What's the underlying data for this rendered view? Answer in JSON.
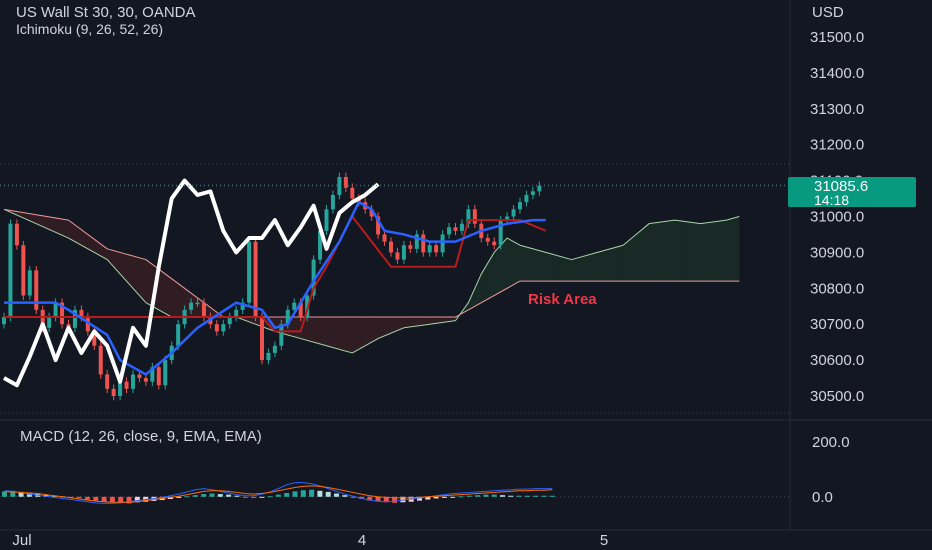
{
  "header": {
    "symbol_line": "US Wall St 30, 30, OANDA",
    "indicator_line": "Ichimoku (9, 26, 52, 26)",
    "currency": "USD"
  },
  "price_badge": {
    "price": "31085.6",
    "countdown": "14:18",
    "color": "#089981"
  },
  "annotation": {
    "label": "Risk Area",
    "color": "#f23645"
  },
  "macd": {
    "label": "MACD (12, 26, close, 9, EMA, EMA)"
  },
  "colors": {
    "background": "#131722",
    "up": "#26a69a",
    "down": "#ef5350",
    "tenkan": "#2962ff",
    "kijun": "#b71c1c",
    "chikou": "#ffffff",
    "span_a": "#a5d6a7",
    "span_b": "#ef9a9a",
    "macd_line": "#2962ff",
    "signal_line": "#ff6d00"
  },
  "chart_data": [
    {
      "type": "line",
      "title": "US Wall St 30, 30, OANDA",
      "y_axis_ticks": [
        "31500.0",
        "31400.0",
        "31300.0",
        "31200.0",
        "31100.0",
        "31000.0",
        "30900.0",
        "30800.0",
        "30700.0",
        "30600.0",
        "30500.0"
      ],
      "x_axis_ticks": [
        "Jul",
        "4",
        "5"
      ],
      "y_range": [
        30450,
        31600
      ],
      "last_price": 31085.6,
      "candles_close": [
        30720,
        30980,
        30920,
        30780,
        30850,
        30740,
        30690,
        30720,
        30760,
        30700,
        30690,
        30740,
        30720,
        30680,
        30640,
        30560,
        30520,
        30500,
        30540,
        30520,
        30560,
        30550,
        30540,
        30580,
        30530,
        30600,
        30640,
        30700,
        30740,
        30760,
        30760,
        30720,
        30700,
        30680,
        30700,
        30720,
        30740,
        30760,
        30930,
        30720,
        30600,
        30620,
        30640,
        30700,
        30740,
        30760,
        30720,
        30780,
        30880,
        30960,
        31020,
        31060,
        31110,
        31080,
        31050,
        31040,
        31020,
        31000,
        30950,
        30930,
        30900,
        30880,
        30920,
        30910,
        30950,
        30900,
        30920,
        30900,
        30950,
        30970,
        30960,
        30980,
        31020,
        30980,
        30940,
        30930,
        30920,
        30990,
        31000,
        31020,
        31040,
        31060,
        31070,
        31085.6
      ],
      "tenkan_points": [
        [
          0,
          30760
        ],
        [
          8,
          30760
        ],
        [
          10,
          30740
        ],
        [
          16,
          30670
        ],
        [
          18,
          30600
        ],
        [
          22,
          30560
        ],
        [
          26,
          30620
        ],
        [
          30,
          30690
        ],
        [
          36,
          30760
        ],
        [
          40,
          30740
        ],
        [
          42,
          30690
        ],
        [
          44,
          30700
        ],
        [
          46,
          30760
        ],
        [
          48,
          30820
        ],
        [
          52,
          30930
        ],
        [
          55,
          31040
        ],
        [
          57,
          31020
        ],
        [
          59,
          30960
        ],
        [
          62,
          30950
        ],
        [
          66,
          30930
        ],
        [
          70,
          30930
        ],
        [
          74,
          30960
        ],
        [
          78,
          30980
        ],
        [
          82,
          30990
        ],
        [
          84,
          30990
        ]
      ],
      "kijun_points": [
        [
          0,
          30720
        ],
        [
          8,
          30720
        ],
        [
          24,
          30720
        ],
        [
          40,
          30720
        ],
        [
          42,
          30680
        ],
        [
          46,
          30680
        ],
        [
          48,
          30800
        ],
        [
          50,
          30860
        ],
        [
          54,
          31000
        ],
        [
          60,
          30860
        ],
        [
          70,
          30860
        ],
        [
          72,
          30990
        ],
        [
          80,
          30990
        ],
        [
          84,
          30960
        ]
      ],
      "span_a_points": [
        [
          0,
          31020
        ],
        [
          10,
          30940
        ],
        [
          16,
          30880
        ],
        [
          22,
          30760
        ],
        [
          26,
          30720
        ],
        [
          30,
          30720
        ],
        [
          36,
          30720
        ],
        [
          42,
          30680
        ],
        [
          46,
          30660
        ],
        [
          50,
          30640
        ],
        [
          54,
          30620
        ],
        [
          58,
          30660
        ],
        [
          62,
          30690
        ],
        [
          66,
          30700
        ],
        [
          70,
          30710
        ],
        [
          72,
          30760
        ],
        [
          74,
          30840
        ],
        [
          76,
          30900
        ],
        [
          78,
          30940
        ],
        [
          80,
          30920
        ],
        [
          84,
          30900
        ],
        [
          88,
          30880
        ],
        [
          92,
          30900
        ],
        [
          96,
          30920
        ],
        [
          100,
          30980
        ],
        [
          104,
          30990
        ],
        [
          108,
          30980
        ],
        [
          112,
          30990
        ],
        [
          114,
          31000
        ]
      ],
      "span_b_points": [
        [
          0,
          31020
        ],
        [
          10,
          30990
        ],
        [
          16,
          30910
        ],
        [
          22,
          30880
        ],
        [
          28,
          30800
        ],
        [
          34,
          30720
        ],
        [
          40,
          30720
        ],
        [
          60,
          30720
        ],
        [
          70,
          30720
        ],
        [
          80,
          30820
        ],
        [
          114,
          30820
        ]
      ],
      "chikou_points": [
        [
          0,
          30550
        ],
        [
          2,
          30530
        ],
        [
          4,
          30610
        ],
        [
          6,
          30700
        ],
        [
          8,
          30600
        ],
        [
          10,
          30690
        ],
        [
          12,
          30620
        ],
        [
          14,
          30680
        ],
        [
          16,
          30640
        ],
        [
          18,
          30540
        ],
        [
          20,
          30690
        ],
        [
          22,
          30640
        ],
        [
          24,
          30860
        ],
        [
          26,
          31050
        ],
        [
          28,
          31100
        ],
        [
          30,
          31060
        ],
        [
          32,
          31070
        ],
        [
          34,
          30960
        ],
        [
          36,
          30900
        ],
        [
          38,
          30940
        ],
        [
          40,
          30940
        ],
        [
          42,
          30990
        ],
        [
          44,
          30920
        ],
        [
          46,
          30970
        ],
        [
          48,
          31030
        ],
        [
          50,
          30910
        ],
        [
          52,
          31010
        ],
        [
          54,
          31040
        ],
        [
          56,
          31060
        ],
        [
          58,
          31090
        ]
      ]
    },
    {
      "type": "bar",
      "title": "MACD (12, 26, close, 9, EMA, EMA)",
      "y_axis_ticks": [
        "200.0",
        "0.0"
      ],
      "y_range": [
        -30,
        230
      ],
      "histogram": [
        20,
        22,
        18,
        15,
        12,
        8,
        5,
        2,
        -2,
        -5,
        -10,
        -14,
        -18,
        -20,
        -22,
        -24,
        -20,
        -18,
        -15,
        -12,
        -8,
        -4,
        2,
        6,
        10,
        12,
        10,
        8,
        4,
        -2,
        -4,
        -2,
        2,
        8,
        14,
        20,
        24,
        26,
        22,
        18,
        12,
        6,
        -2,
        -8,
        -14,
        -18,
        -20,
        -22,
        -20,
        -18,
        -14,
        -10,
        -6,
        -4,
        -2,
        2,
        4,
        6,
        8,
        8,
        6,
        4,
        4,
        4,
        4,
        4,
        4
      ],
      "macd_line": [
        22,
        20,
        16,
        10,
        6,
        2,
        -2,
        -6,
        -10,
        -14,
        -18,
        -22,
        -24,
        -24,
        -22,
        -18,
        -14,
        -10,
        -6,
        -2,
        4,
        10,
        18,
        26,
        30,
        26,
        20,
        14,
        8,
        4,
        4,
        10,
        18,
        30,
        44,
        52,
        52,
        48,
        40,
        30,
        20,
        10,
        2,
        -6,
        -12,
        -16,
        -18,
        -16,
        -12,
        -8,
        -4,
        0,
        4,
        8,
        12,
        14,
        16,
        18,
        20,
        22,
        24,
        26,
        28,
        28,
        30,
        30,
        30
      ],
      "signal_line": [
        18,
        18,
        16,
        14,
        12,
        8,
        4,
        0,
        -4,
        -8,
        -12,
        -16,
        -18,
        -20,
        -20,
        -20,
        -18,
        -14,
        -10,
        -6,
        -2,
        2,
        8,
        14,
        20,
        22,
        22,
        20,
        16,
        12,
        10,
        12,
        16,
        22,
        28,
        34,
        38,
        40,
        38,
        34,
        28,
        22,
        16,
        10,
        4,
        0,
        -2,
        -4,
        -4,
        -4,
        -2,
        0,
        2,
        4,
        6,
        8,
        10,
        12,
        14,
        16,
        18,
        20,
        22,
        22,
        24,
        24,
        26
      ]
    }
  ]
}
